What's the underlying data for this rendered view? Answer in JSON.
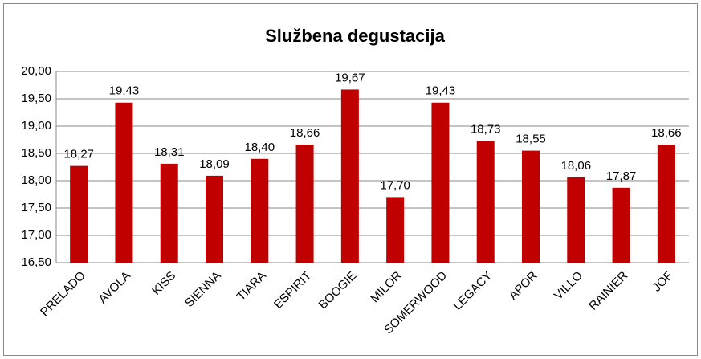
{
  "chart_data": {
    "type": "bar",
    "title": "Službena degustacija",
    "categories": [
      "PRELADO",
      "AVOLA",
      "KISS",
      "SIENNA",
      "TIARA",
      "ESPIRIT",
      "BOOGIE",
      "MILOR",
      "SOMERWOOD",
      "LEGACY",
      "APOR",
      "VILLO",
      "RAINIER",
      "JOF"
    ],
    "values": [
      18.27,
      19.43,
      18.31,
      18.09,
      18.4,
      18.66,
      19.67,
      17.7,
      19.43,
      18.73,
      18.55,
      18.06,
      17.87,
      18.66
    ],
    "value_labels": [
      "18,27",
      "19,43",
      "18,31",
      "18,09",
      "18,40",
      "18,66",
      "19,67",
      "17,70",
      "19,43",
      "18,73",
      "18,55",
      "18,06",
      "17,87",
      "18,66"
    ],
    "color": "#c00000",
    "ylim": [
      16.5,
      20
    ],
    "yticks": [
      {
        "value": 16.5,
        "label": "16,50"
      },
      {
        "value": 17,
        "label": "17,00"
      },
      {
        "value": 17.5,
        "label": "17,50"
      },
      {
        "value": 18,
        "label": "18,00"
      },
      {
        "value": 18.5,
        "label": "18,50"
      },
      {
        "value": 19,
        "label": "19,00"
      },
      {
        "value": 19.5,
        "label": "19,50"
      },
      {
        "value": 20,
        "label": "20,00"
      }
    ],
    "grid": true
  }
}
